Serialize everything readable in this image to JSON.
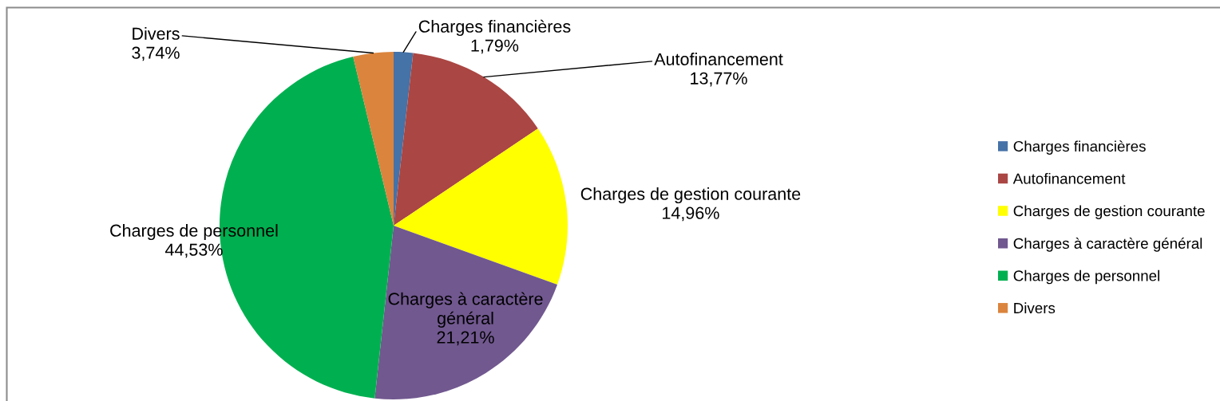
{
  "chart_data": {
    "type": "pie",
    "categories": [
      "Charges financières",
      "Autofinancement",
      "Charges de gestion courante",
      "Charges à caractère général",
      "Charges de personnel",
      "Divers"
    ],
    "values": [
      1.79,
      13.77,
      14.96,
      21.21,
      44.53,
      3.74
    ],
    "colors": [
      "#4572a7",
      "#aa4643",
      "#ffff00",
      "#71588f",
      "#00b050",
      "#db843d"
    ],
    "value_labels": [
      "1,79%",
      "13,77%",
      "14,96%",
      "21,21%",
      "44,53%",
      "3,74%"
    ],
    "legend": "right"
  }
}
